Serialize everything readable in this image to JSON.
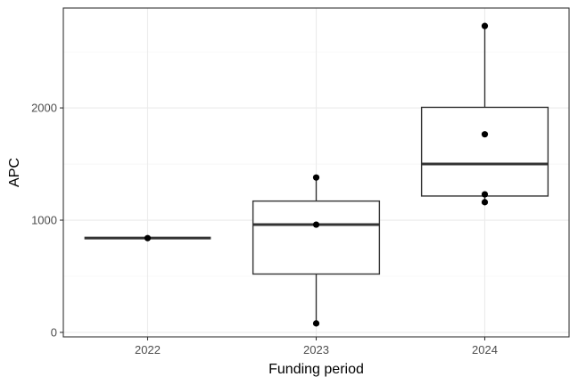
{
  "chart_data": {
    "type": "boxplot",
    "xlabel": "Funding period",
    "ylabel": "APC",
    "categories": [
      "2022",
      "2023",
      "2024"
    ],
    "ylim": [
      -40,
      2890
    ],
    "yticks": [
      0,
      1000,
      2000
    ],
    "yticks_minor": [
      500,
      1500,
      2500
    ],
    "grid": true,
    "boxes": [
      {
        "category": "2022",
        "min": 840,
        "q1": 840,
        "median": 840,
        "q3": 840,
        "max": 840
      },
      {
        "category": "2023",
        "min": 80,
        "q1": 520,
        "median": 960,
        "q3": 1170,
        "max": 1380
      },
      {
        "category": "2024",
        "min": 1160,
        "q1": 1215,
        "median": 1500,
        "q3": 2005,
        "max": 2730
      }
    ],
    "points": [
      {
        "category": "2022",
        "y": 840
      },
      {
        "category": "2023",
        "y": 80
      },
      {
        "category": "2023",
        "y": 960
      },
      {
        "category": "2023",
        "y": 1380
      },
      {
        "category": "2024",
        "y": 1160
      },
      {
        "category": "2024",
        "y": 1230
      },
      {
        "category": "2024",
        "y": 1765
      },
      {
        "category": "2024",
        "y": 2730
      }
    ]
  }
}
